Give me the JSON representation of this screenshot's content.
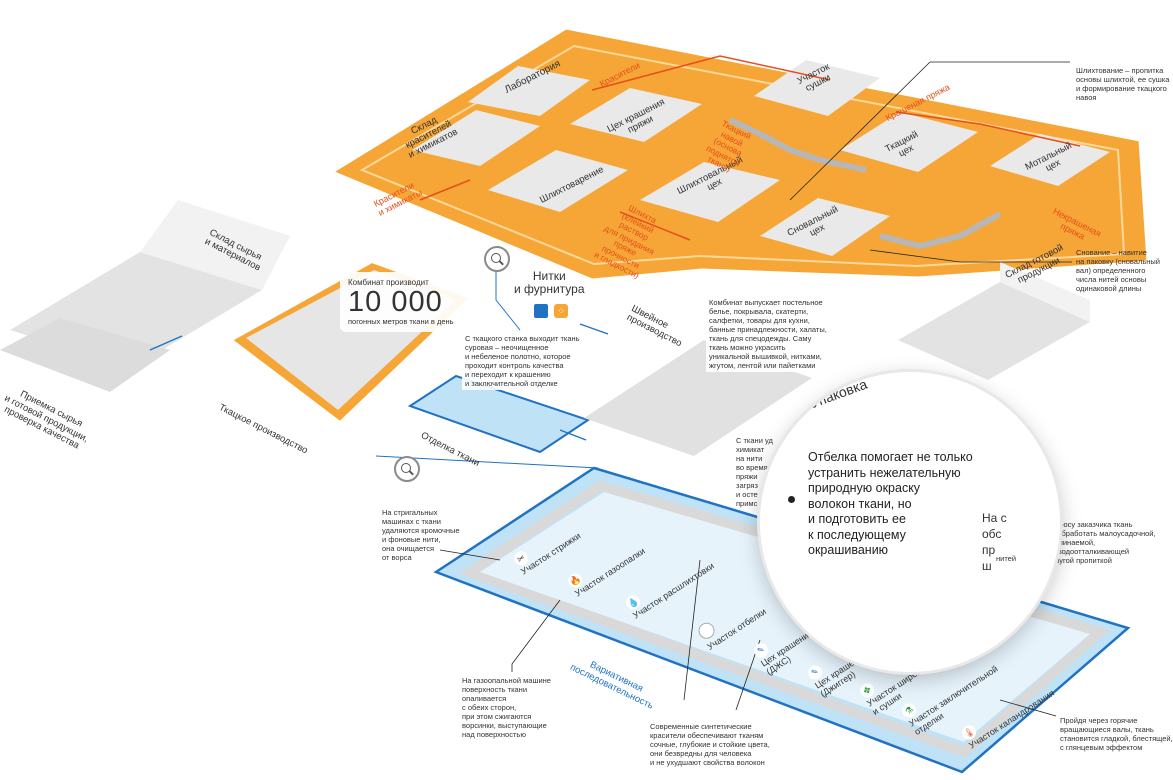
{
  "colors": {
    "orange_zone": "#f5a637",
    "orange_border": "#ffffff",
    "blue_zone": "#bfe2f7",
    "blue_border": "#1f72c4",
    "room_floor": "#e9e9e9",
    "wall": "#f7f7f7",
    "accent_red": "#e84e1b",
    "accent_blue": "#1f72c4"
  },
  "dye_zone": {
    "rooms": [
      "Лаборатория",
      "Склад\nкрасителей\nи химикатов",
      "Цех крашения\nпряжи",
      "Шлихтоварение",
      "Шлихтовальный\nцех",
      "Участок\nсушки",
      "Ткацкий\nцех",
      "Мотальный\nцех",
      "Сновальный\nцех"
    ],
    "flows": [
      "Красители",
      "Красители\nи химикаты",
      "Ткацкий\nнавой\n(основа\nподнятой\nткани)",
      "Крашеная пряжа",
      "Шлихта\n(клейкий\nраствор\nдля придания\nпряже\nпрочности\nи гладкости)",
      "Некрашеная\nпряжа"
    ]
  },
  "factory": {
    "labels": [
      "Склад сырья\nи материалов",
      "Приемка сырья\nи готовой продукции,\nпроверка качества",
      "Ткацкое производство",
      "Отделка ткани",
      "Швейное\nпроизводство",
      "Склад готовой\nпродукции",
      "Упаковка",
      "Нитки\nи фурнитура"
    ],
    "stat": {
      "caption": "Комбинат производит",
      "number": "10 000",
      "unit": "погонных метров ткани в день"
    },
    "note_weaving": "С ткацкого станка выходит ткань\nсуровая – неочищенное\nи небеленое полотно, которое\nпроходит контроль качества\nи переходит к крашению\nи заключительной отделке",
    "note_sewing": "Комбинат выпускает постельное\nбелье, покрывала, скатерти,\nсалфетки, товары для кухни,\nбанные принадлежности, халаты,\nткань для спецодежды. Саму\nткань можно украсить\nуникальной вышивкой, нитками,\nжгутом, лентой или пайетками"
  },
  "notes": {
    "sizing": "Шлихтование – пропитка\nосновы шлихтой, ее сушка\nи формирование ткацкого\nнавоя",
    "warping": "Снование – навитие\nна паковку (сновальный\nвал) определенного\nчисла нитей основы\nодинаковой длины",
    "shearing": "На стригальных\nмашинах с ткани\nудаляются кромочные\nи фоновые нити,\nона очищается\nот ворса",
    "singeing": "На газоопальной машине\nповерхность ткани\nопаливается\nс обеих сторон,\nпри этом сжигаются\nворсинки, выступающие\nнад поверхностью",
    "dyes": "Современные синтетические\nкрасители обеспечивают тканям\nсочные, глубокие и стойкие цвета,\nони безвредны для человека\nи не ухудшают свойства волокон",
    "calendering": "Пройдя через горячие\nвращающиеся валы, ткань\nстановится гладкой, блестящей,\nс глянцевым эффектом",
    "impregnation": "По запросу заказчика ткань\nмогут обработать малоусадочной,\nмалосминаемой,\nмасловодоотталкивающей\nили другой пропиткой",
    "hidden_left": "С ткани уд\nхимикат\nна нити\nво время\nпряжи\nзагряз\nи осте\nпримс",
    "hidden_right": "На с\nобс\nпр\nш",
    "hidden_right_small": "нитей"
  },
  "magnifier": {
    "text": "Отбелка помогает не только\nустранить нежелательную\nприродную окраску\nволокон ткани, но\nи подготовить ее\nк последующему\nокрашиванию"
  },
  "finishing_zone": {
    "stations": [
      {
        "label": "Участок стрижки",
        "icon": "scissors-icon"
      },
      {
        "label": "Участок газоопалки",
        "icon": "flame-icon"
      },
      {
        "label": "Участок расшлихтовки",
        "icon": "drop-icon"
      },
      {
        "label": "Участок отбелки",
        "icon": "white-circle-icon"
      },
      {
        "label": "Цех крашения\n(ДЖС)",
        "icon": "dye-jet-icon"
      },
      {
        "label": "Цех крашения\n(Джиггер)",
        "icon": "jigger-icon"
      },
      {
        "label": "Участок ширения\nи сушки",
        "icon": "expand-arrows-icon"
      },
      {
        "label": "Участок заключительной\nотделки",
        "icon": "flask-icon"
      },
      {
        "label": "Участок каландрования",
        "icon": "thermometer-icon"
      }
    ],
    "variable_sequence": "Вариативная\nпоследовательность"
  }
}
